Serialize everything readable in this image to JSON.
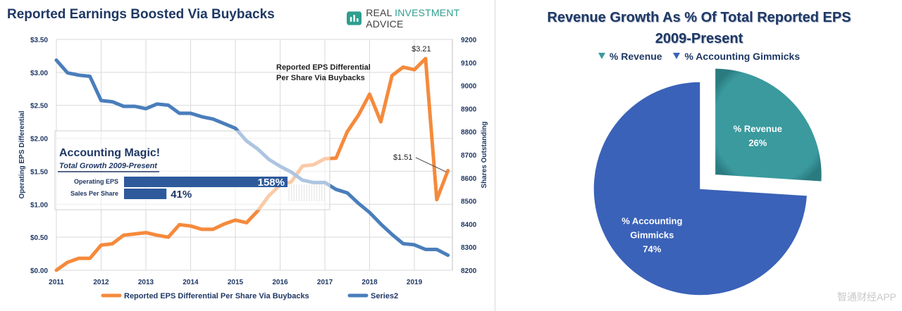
{
  "left": {
    "title": "Reported Earnings Boosted Via Buybacks",
    "brand": {
      "logo_icon": "chart-logo-icon",
      "text_part1": "REAL ",
      "text_part2": "INVESTMENT",
      "text_part3": " ADVICE"
    }
  },
  "right": {
    "title_line1": "Revenue Growth As % Of Total Reported EPS",
    "title_line2": "2009-Present",
    "watermark": "智通财经APP"
  },
  "chart_data": [
    {
      "type": "line",
      "title": "Reported Earnings Boosted Via Buybacks",
      "ylabel": "Operating EPS Differential",
      "y2label": "Shares Outstanding",
      "xlim": [
        2011,
        2019.85
      ],
      "ylim": [
        0,
        3.5
      ],
      "y2lim": [
        8200,
        9200
      ],
      "x_ticks": [
        "2011",
        "2012",
        "2013",
        "2014",
        "2015",
        "2016",
        "2017",
        "2018",
        "2019"
      ],
      "y_ticks": [
        "$0.00",
        "$0.50",
        "$1.00",
        "$1.50",
        "$2.00",
        "$2.50",
        "$3.00",
        "$3.50"
      ],
      "y2_ticks": [
        "8200",
        "8300",
        "8400",
        "8500",
        "8600",
        "8700",
        "8800",
        "8900",
        "9000",
        "9100",
        "9200"
      ],
      "series": [
        {
          "name": "Reported EPS Differential Per Share Via Buybacks",
          "axis": "left",
          "color": "#f58a3c",
          "x": [
            2011.0,
            2011.25,
            2011.5,
            2011.75,
            2012.0,
            2012.25,
            2012.5,
            2012.75,
            2013.0,
            2013.25,
            2013.5,
            2013.75,
            2014.0,
            2014.25,
            2014.5,
            2014.75,
            2015.0,
            2015.25,
            2015.5,
            2015.75,
            2016.0,
            2016.25,
            2016.5,
            2016.75,
            2017.0,
            2017.25,
            2017.5,
            2017.75,
            2018.0,
            2018.25,
            2018.5,
            2018.75,
            2019.0,
            2019.25,
            2019.5,
            2019.75
          ],
          "values": [
            0.0,
            0.12,
            0.18,
            0.18,
            0.38,
            0.4,
            0.53,
            0.55,
            0.57,
            0.53,
            0.5,
            0.69,
            0.67,
            0.62,
            0.62,
            0.7,
            0.76,
            0.72,
            0.9,
            1.13,
            1.29,
            1.34,
            1.58,
            1.6,
            1.69,
            1.7,
            2.1,
            2.35,
            2.67,
            2.25,
            2.95,
            3.08,
            3.04,
            3.21,
            1.07,
            1.51
          ]
        },
        {
          "name": "Series2",
          "axis": "right",
          "color": "#4a7ebb",
          "x": [
            2011.0,
            2011.25,
            2011.5,
            2011.75,
            2012.0,
            2012.25,
            2012.5,
            2012.75,
            2013.0,
            2013.25,
            2013.5,
            2013.75,
            2014.0,
            2014.25,
            2014.5,
            2014.75,
            2015.0,
            2015.25,
            2015.5,
            2015.75,
            2016.0,
            2016.25,
            2016.5,
            2016.75,
            2017.0,
            2017.25,
            2017.5,
            2017.75,
            2018.0,
            2018.25,
            2018.5,
            2018.75,
            2019.0,
            2019.25,
            2019.5,
            2019.75
          ],
          "values": [
            9110,
            9055,
            9045,
            9040,
            8935,
            8930,
            8910,
            8910,
            8900,
            8920,
            8915,
            8880,
            8880,
            8865,
            8855,
            8835,
            8815,
            8760,
            8725,
            8680,
            8650,
            8625,
            8590,
            8580,
            8580,
            8550,
            8535,
            8490,
            8450,
            8400,
            8355,
            8315,
            8310,
            8290,
            8290,
            8265
          ]
        }
      ],
      "annotations": [
        {
          "text": "$3.21",
          "x": 2019.25,
          "y": 3.21
        },
        {
          "text": "$1.51",
          "x": 2019.75,
          "y": 1.51
        },
        {
          "text_line1": "Reported EPS Differential",
          "text_line2": "Per Share Via Buybacks",
          "x": 2016.8,
          "y": 3.0
        }
      ],
      "inset": {
        "title": "Accounting Magic!",
        "subtitle": "Total Growth 2009-Present",
        "bars": [
          {
            "label": "Operating EPS",
            "value": 158,
            "display": "158%"
          },
          {
            "label": "Sales Per Share",
            "value": 41,
            "display": "41%"
          }
        ]
      },
      "legend": [
        "Reported EPS Differential Per Share Via Buybacks",
        "Series2"
      ]
    },
    {
      "type": "pie",
      "title": "Revenue Growth As % Of Total Reported EPS 2009-Present",
      "legend": [
        "% Revenue",
        "% Accounting Gimmicks"
      ],
      "slices": [
        {
          "label": "% Revenue",
          "value": 26,
          "display": "26%",
          "color": "#3a9a9e",
          "exploded": true
        },
        {
          "label_line1": "% Accounting",
          "label_line2": "Gimmicks",
          "value": 74,
          "display": "74%",
          "color": "#3a62b8",
          "exploded": false
        }
      ]
    }
  ]
}
